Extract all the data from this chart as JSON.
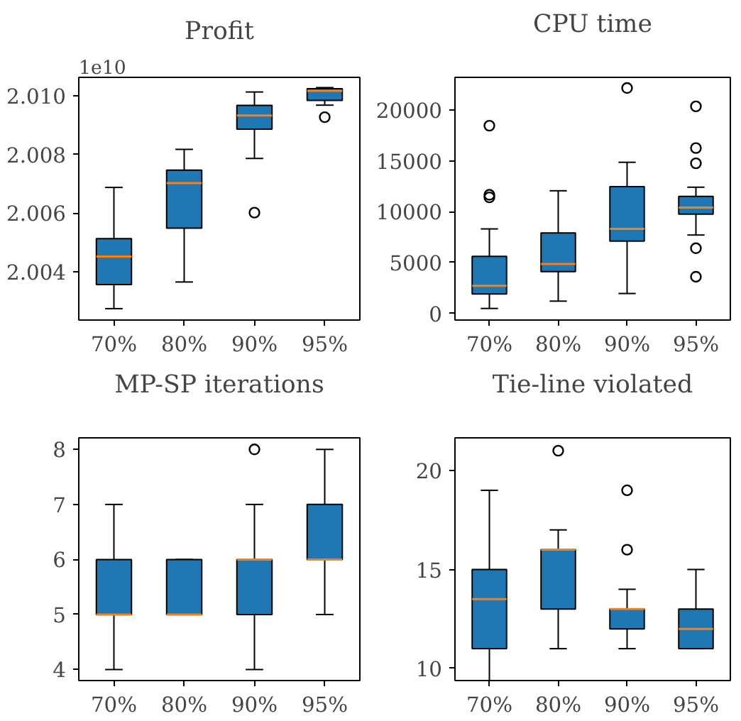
{
  "chart_data": [
    {
      "type": "box",
      "title": "Profit",
      "annotations": [
        "1e10"
      ],
      "categories": [
        "70%",
        "80%",
        "90%",
        "95%"
      ],
      "color": "#1f77b4",
      "ylim": [
        2.00235,
        2.01064
      ],
      "yticks": [
        2.004,
        2.006,
        2.008,
        {
          "value": 2.01,
          "label": "2.010"
        }
      ],
      "grid": false,
      "boxes": [
        {
          "low": 2.00274,
          "q1": 2.00356,
          "median": 2.00452,
          "q3": 2.00513,
          "high": 2.00688
        },
        {
          "low": 2.00365,
          "q1": 2.00549,
          "median": 2.00703,
          "q3": 2.00747,
          "high": 2.00818
        },
        {
          "low": 2.00787,
          "q1": 2.00887,
          "median": 2.00934,
          "q3": 2.00968,
          "high": 2.01014,
          "outliers": [
            2.00602
          ]
        },
        {
          "low": 2.00969,
          "q1": 2.00985,
          "median": 2.01018,
          "q3": 2.01025,
          "high": 2.01029,
          "outliers": [
            2.00928
          ]
        }
      ]
    },
    {
      "type": "box",
      "title": "CPU time",
      "categories": [
        "70%",
        "80%",
        "90%",
        "95%"
      ],
      "color": "#1f77b4",
      "ylim": [
        -660,
        23200
      ],
      "yticks": [
        0,
        5000,
        10000,
        15000,
        20000
      ],
      "grid": false,
      "boxes": [
        {
          "low": 480,
          "q1": 1900,
          "median": 2700,
          "q3": 5600,
          "high": 8300,
          "outliers": [
            11400,
            11650,
            18450
          ]
        },
        {
          "low": 1200,
          "q1": 4100,
          "median": 4850,
          "q3": 7900,
          "high": 12050
        },
        {
          "low": 1950,
          "q1": 7100,
          "median": 8300,
          "q3": 12450,
          "high": 14850,
          "outliers": [
            22150
          ]
        },
        {
          "low": 7700,
          "q1": 9750,
          "median": 10400,
          "q3": 11500,
          "high": 12400,
          "outliers": [
            3600,
            6400,
            14750,
            16250,
            20350
          ]
        }
      ]
    },
    {
      "type": "box",
      "title": "MP-SP iterations",
      "categories": [
        "70%",
        "80%",
        "90%",
        "95%"
      ],
      "color": "#1f77b4",
      "ylim": [
        3.8,
        8.21
      ],
      "yticks": [
        4,
        5,
        6,
        7,
        8
      ],
      "grid": false,
      "boxes": [
        {
          "low": 4,
          "q1": 5,
          "median": 5,
          "q3": 6,
          "high": 7
        },
        {
          "low": 5,
          "q1": 5,
          "median": 5,
          "q3": 6,
          "high": 6
        },
        {
          "low": 4,
          "q1": 5,
          "median": 6,
          "q3": 6,
          "high": 7,
          "outliers": [
            8
          ]
        },
        {
          "low": 5,
          "q1": 6,
          "median": 6,
          "q3": 7,
          "high": 8
        }
      ]
    },
    {
      "type": "box",
      "title": "Tie-line violated",
      "categories": [
        "70%",
        "80%",
        "90%",
        "95%"
      ],
      "color": "#1f77b4",
      "ylim": [
        9.39,
        21.65
      ],
      "yticks": [
        10,
        15,
        20
      ],
      "grid": false,
      "boxes": [
        {
          "low": 9,
          "q1": 11,
          "median": 13.5,
          "q3": 15,
          "high": 19
        },
        {
          "low": 11,
          "q1": 13,
          "median": 16,
          "q3": 16,
          "high": 17,
          "outliers": [
            21
          ]
        },
        {
          "low": 11,
          "q1": 12,
          "median": 13,
          "q3": 13,
          "high": 14,
          "outliers": [
            16,
            19
          ]
        },
        {
          "low": 11,
          "q1": 11,
          "median": 12,
          "q3": 13,
          "high": 15
        }
      ]
    }
  ]
}
